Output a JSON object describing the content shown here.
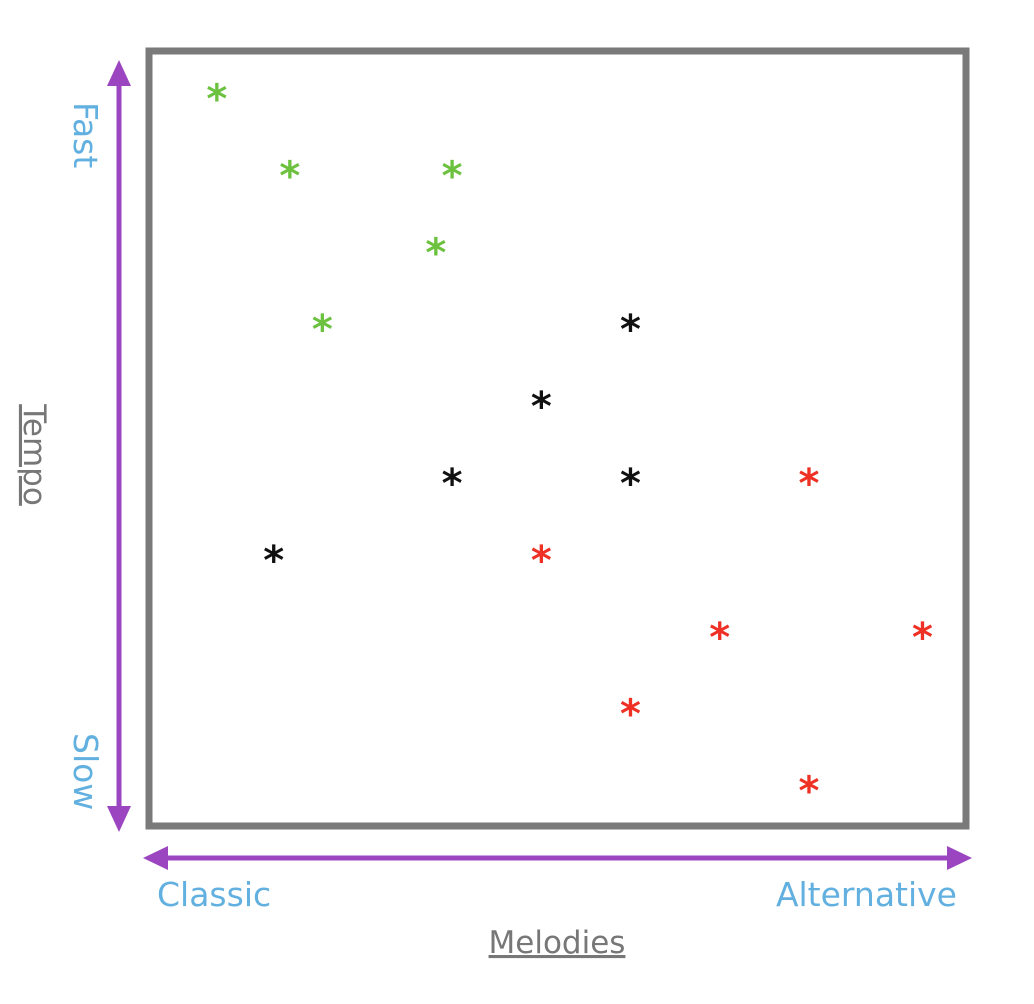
{
  "chart_data": {
    "type": "scatter",
    "title": "",
    "xlabel": "Melodies",
    "ylabel": "Tempo",
    "x_low_label": "Classic",
    "x_high_label": "Alternative",
    "y_low_label": "Slow",
    "y_high_label": "Fast",
    "grid": false,
    "marker": "*",
    "xlim": [
      0,
      10
    ],
    "ylim": [
      0,
      10
    ],
    "series": [
      {
        "color": "#6cc13e",
        "points": [
          {
            "x": 0.8,
            "y": 9.5
          },
          {
            "x": 1.7,
            "y": 8.5
          },
          {
            "x": 3.7,
            "y": 8.5
          },
          {
            "x": 3.5,
            "y": 7.5
          },
          {
            "x": 2.1,
            "y": 6.5
          }
        ]
      },
      {
        "color": "#111111",
        "points": [
          {
            "x": 5.9,
            "y": 6.5
          },
          {
            "x": 4.8,
            "y": 5.5
          },
          {
            "x": 3.7,
            "y": 4.5
          },
          {
            "x": 5.9,
            "y": 4.5
          },
          {
            "x": 1.5,
            "y": 3.5
          }
        ]
      },
      {
        "color": "#ee3124",
        "points": [
          {
            "x": 8.1,
            "y": 4.5
          },
          {
            "x": 4.8,
            "y": 3.5
          },
          {
            "x": 7.0,
            "y": 2.5
          },
          {
            "x": 9.5,
            "y": 2.5
          },
          {
            "x": 5.9,
            "y": 1.5
          },
          {
            "x": 8.1,
            "y": 0.5
          }
        ]
      }
    ]
  }
}
